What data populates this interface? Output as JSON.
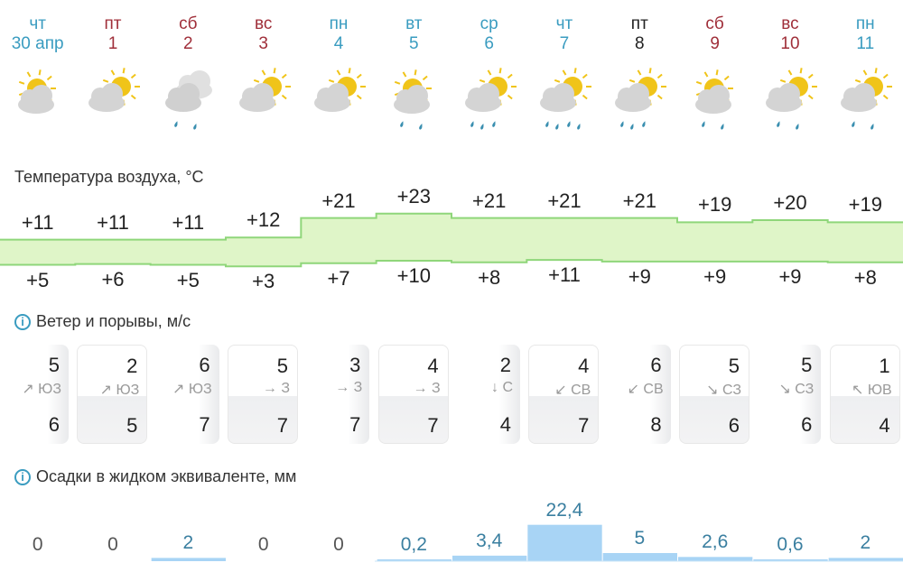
{
  "colors": {
    "weekday": "#3a9cc0",
    "weekend": "#a02f3a",
    "band": "#dff5c8",
    "band_line": "#8fd67a",
    "precip": "#a8d4f5"
  },
  "days": [
    {
      "dow": "чт",
      "date": "30 апр",
      "kind": "wd",
      "icon": "sun-cloud",
      "drops": 0
    },
    {
      "dow": "пт",
      "date": "1",
      "kind": "we",
      "icon": "cloud-sun",
      "drops": 0
    },
    {
      "dow": "сб",
      "date": "2",
      "kind": "we",
      "icon": "clouds-rain",
      "drops": 2
    },
    {
      "dow": "вс",
      "date": "3",
      "kind": "we",
      "icon": "cloud-sun",
      "drops": 0
    },
    {
      "dow": "пн",
      "date": "4",
      "kind": "wd",
      "icon": "cloud-sun",
      "drops": 0
    },
    {
      "dow": "вт",
      "date": "5",
      "kind": "wd",
      "icon": "sun-cloud-rain",
      "drops": 2
    },
    {
      "dow": "ср",
      "date": "6",
      "kind": "wd",
      "icon": "cloud-sun-rain",
      "drops": 3
    },
    {
      "dow": "чт",
      "date": "7",
      "kind": "wd",
      "icon": "cloud-sun-rain",
      "drops": 4
    },
    {
      "dow": "пт",
      "date": "8",
      "kind": "dk",
      "icon": "cloud-sun-rain",
      "drops": 3
    },
    {
      "dow": "сб",
      "date": "9",
      "kind": "we",
      "icon": "sun-cloud-rain",
      "drops": 2
    },
    {
      "dow": "вс",
      "date": "10",
      "kind": "we",
      "icon": "cloud-sun-rain",
      "drops": 2
    },
    {
      "dow": "пн",
      "date": "11",
      "kind": "wd",
      "icon": "cloud-sun-rain",
      "drops": 2
    }
  ],
  "temperature": {
    "title": "Температура воздуха, °C",
    "max": [
      "+11",
      "+11",
      "+11",
      "+12",
      "+21",
      "+23",
      "+21",
      "+21",
      "+21",
      "+19",
      "+20",
      "+19"
    ],
    "min": [
      "+5",
      "+6",
      "+5",
      "+3",
      "+7",
      "+10",
      "+8",
      "+11",
      "+9",
      "+9",
      "+9",
      "+8"
    ]
  },
  "wind": {
    "title": "Ветер и порывы, м/с",
    "speed": [
      "5",
      "2",
      "6",
      "5",
      "3",
      "4",
      "2",
      "4",
      "6",
      "5",
      "5",
      "1"
    ],
    "dir": [
      "↗ ЮЗ",
      "↗ ЮЗ",
      "↗ ЮЗ",
      "→ З",
      "→ З",
      "→ З",
      "↓ С",
      "↙ СВ",
      "↙ СВ",
      "↘ СЗ",
      "↘ СЗ",
      "↖ ЮВ"
    ],
    "gust": [
      "6",
      "5",
      "7",
      "7",
      "7",
      "7",
      "4",
      "7",
      "8",
      "6",
      "6",
      "4"
    ]
  },
  "precip": {
    "title": "Осадки в жидком эквиваленте, мм",
    "labels": [
      "0",
      "0",
      "2",
      "0",
      "0",
      "0,2",
      "3,4",
      "22,4",
      "5",
      "2,6",
      "0,6",
      "2"
    ],
    "values": [
      0,
      0,
      2,
      0,
      0,
      0.2,
      3.4,
      22.4,
      5,
      2.6,
      0.6,
      2
    ]
  }
}
